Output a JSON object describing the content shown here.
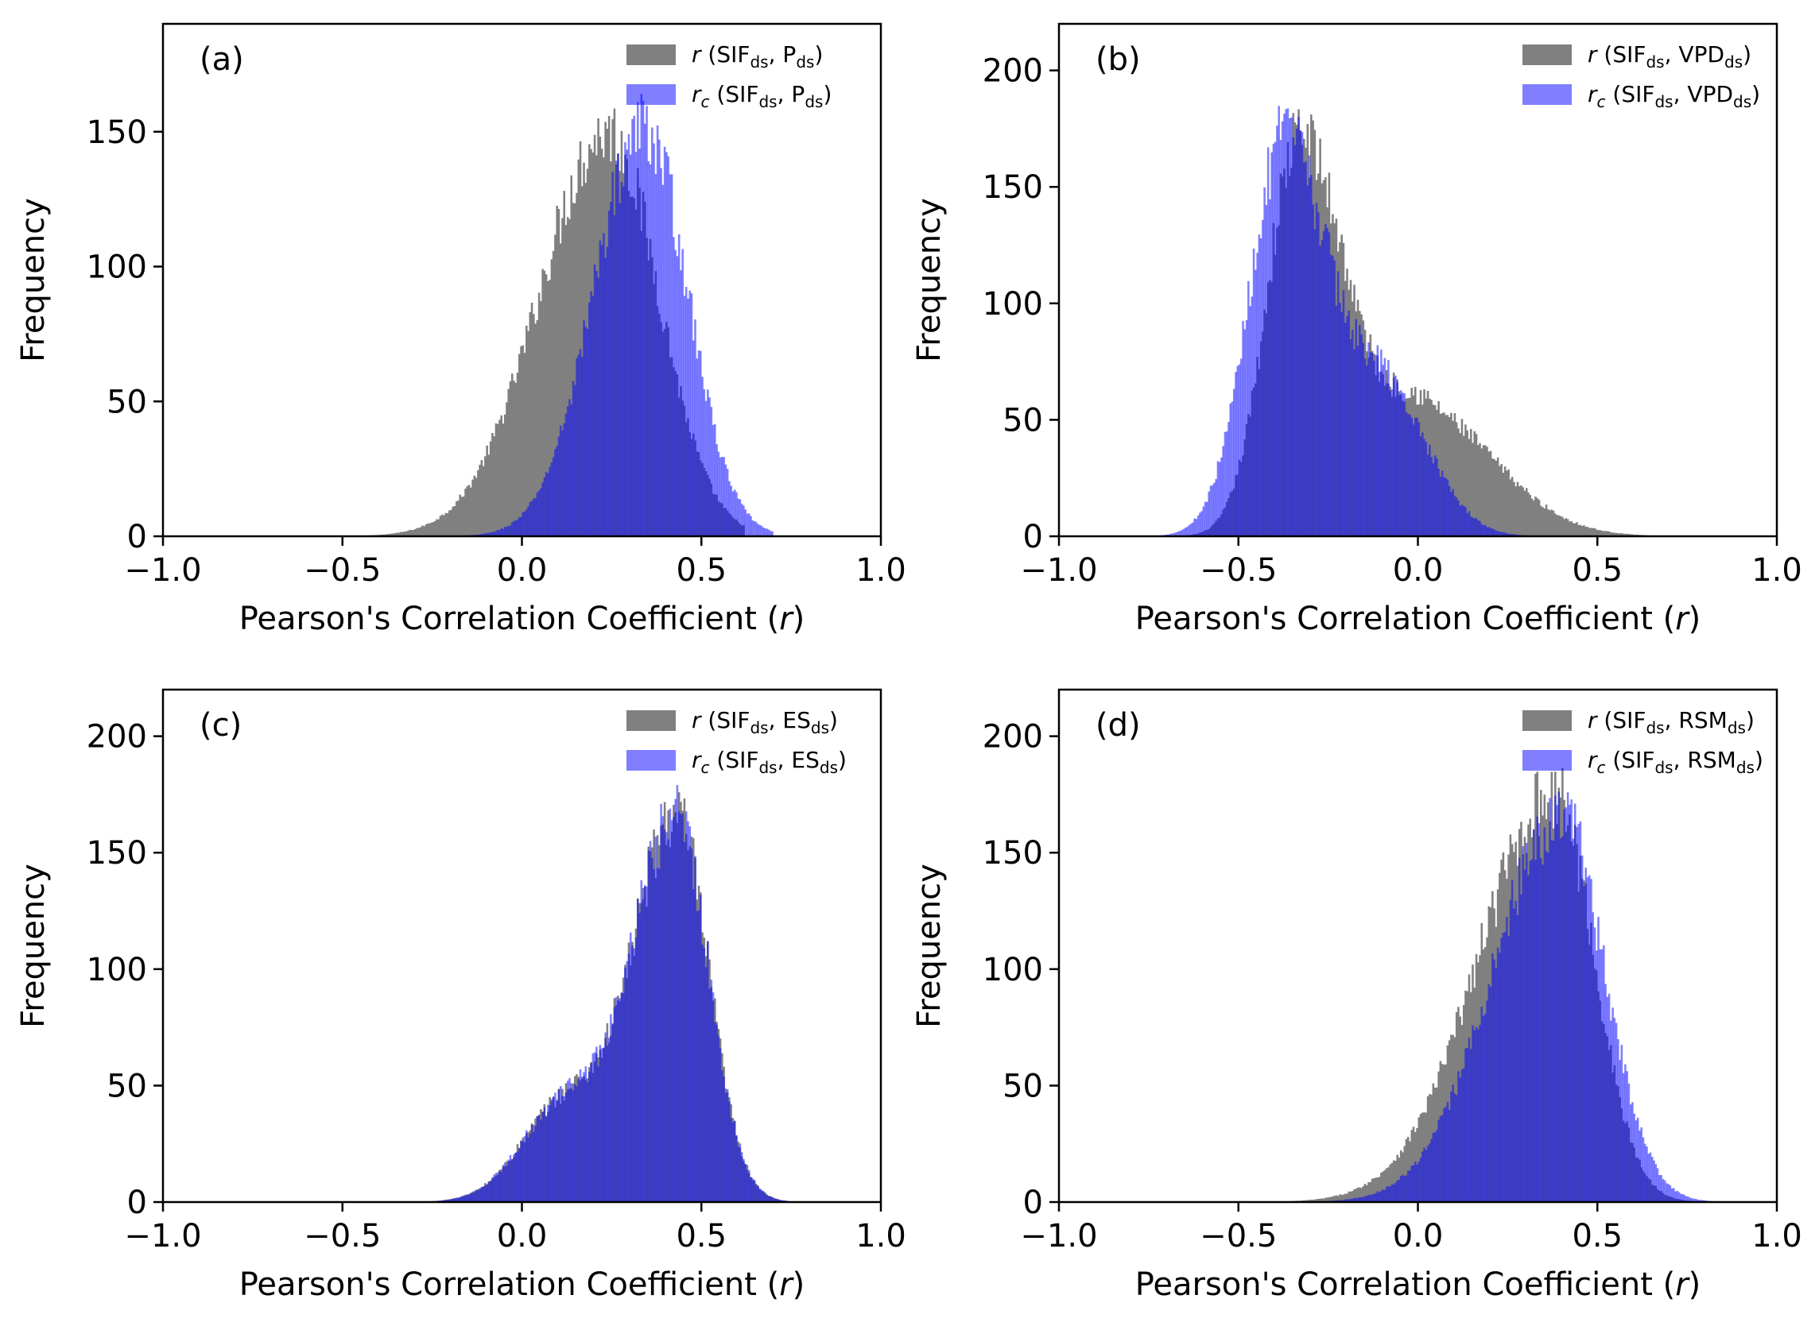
{
  "figure": {
    "panel_count": 4
  },
  "chart_data": [
    {
      "type": "histogram",
      "panel_label": "(a)",
      "xlabel": "Pearson's Correlation Coefficient (r)",
      "xlabel_main": "Pearson's Correlation Coefficient (",
      "xlabel_var": "r",
      "xlabel_close": ")",
      "ylabel": "Frequency",
      "xlim": [
        -1.0,
        1.0
      ],
      "ylim": [
        0,
        190
      ],
      "xticks": [
        -1.0,
        -0.5,
        0.0,
        0.5,
        1.0
      ],
      "xtick_labels": [
        "−1.0",
        "−0.5",
        "0.0",
        "0.5",
        "1.0"
      ],
      "yticks": [
        0,
        50,
        100,
        150
      ],
      "ytick_labels": [
        "0",
        "50",
        "100",
        "150"
      ],
      "legend_position": "top-right",
      "series": [
        {
          "name": "r (SIF_ds, P_ds)",
          "legend": {
            "sym": "r",
            "sym_sub": "",
            "v1": "SIF",
            "v2": "P"
          },
          "color": "#808080",
          "opacity": 1.0,
          "peaks": [
            {
              "center": 0.24,
              "height": 150,
              "sigma_left": 0.19,
              "sigma_right": 0.14
            }
          ],
          "support": [
            -0.55,
            0.62
          ]
        },
        {
          "name": "r_c (SIF_ds, P_ds)",
          "legend": {
            "sym": "r",
            "sym_sub": "c",
            "v1": "SIF",
            "v2": "P"
          },
          "color": "#0000ff",
          "opacity": 0.5,
          "peaks": [
            {
              "center": 0.34,
              "height": 152,
              "sigma_left": 0.14,
              "sigma_right": 0.12
            }
          ],
          "support": [
            -0.25,
            0.7
          ]
        }
      ]
    },
    {
      "type": "histogram",
      "panel_label": "(b)",
      "xlabel": "Pearson's Correlation Coefficient (r)",
      "xlabel_main": "Pearson's Correlation Coefficient (",
      "xlabel_var": "r",
      "xlabel_close": ")",
      "ylabel": "Frequency",
      "xlim": [
        -1.0,
        1.0
      ],
      "ylim": [
        0,
        220
      ],
      "xticks": [
        -1.0,
        -0.5,
        0.0,
        0.5,
        1.0
      ],
      "xtick_labels": [
        "−1.0",
        "−0.5",
        "0.0",
        "0.5",
        "1.0"
      ],
      "yticks": [
        0,
        50,
        100,
        150,
        200
      ],
      "ytick_labels": [
        "0",
        "50",
        "100",
        "150",
        "200"
      ],
      "legend_position": "top-right",
      "series": [
        {
          "name": "r (SIF_ds, VPD_ds)",
          "legend": {
            "sym": "r",
            "sym_sub": "",
            "v1": "SIF",
            "v2": "VPD"
          },
          "color": "#808080",
          "opacity": 1.0,
          "peaks": [
            {
              "center": -0.33,
              "height": 172,
              "sigma_left": 0.09,
              "sigma_right": 0.14
            },
            {
              "center": 0.02,
              "height": 52,
              "sigma_left": 0.1,
              "sigma_right": 0.2
            }
          ],
          "support": [
            -0.72,
            0.7
          ]
        },
        {
          "name": "r_c (SIF_ds, VPD_ds)",
          "legend": {
            "sym": "r",
            "sym_sub": "c",
            "v1": "SIF",
            "v2": "VPD"
          },
          "color": "#0000ff",
          "opacity": 0.5,
          "peaks": [
            {
              "center": -0.37,
              "height": 172,
              "sigma_left": 0.1,
              "sigma_right": 0.13
            },
            {
              "center": -0.08,
              "height": 55,
              "sigma_left": 0.09,
              "sigma_right": 0.12
            }
          ],
          "support": [
            -0.72,
            0.35
          ]
        }
      ]
    },
    {
      "type": "histogram",
      "panel_label": "(c)",
      "xlabel": "Pearson's Correlation Coefficient (r)",
      "xlabel_main": "Pearson's Correlation Coefficient (",
      "xlabel_var": "r",
      "xlabel_close": ")",
      "ylabel": "Frequency",
      "xlim": [
        -1.0,
        1.0
      ],
      "ylim": [
        0,
        220
      ],
      "xticks": [
        -1.0,
        -0.5,
        0.0,
        0.5,
        1.0
      ],
      "xtick_labels": [
        "−1.0",
        "−0.5",
        "0.0",
        "0.5",
        "1.0"
      ],
      "yticks": [
        0,
        50,
        100,
        150,
        200
      ],
      "ytick_labels": [
        "0",
        "50",
        "100",
        "150",
        "200"
      ],
      "legend_position": "top-right",
      "series": [
        {
          "name": "r (SIF_ds, ES_ds)",
          "legend": {
            "sym": "r",
            "sym_sub": "",
            "v1": "SIF",
            "v2": "ES"
          },
          "color": "#808080",
          "opacity": 1.0,
          "peaks": [
            {
              "center": 0.43,
              "height": 165,
              "sigma_left": 0.12,
              "sigma_right": 0.09
            },
            {
              "center": 0.12,
              "height": 42,
              "sigma_left": 0.12,
              "sigma_right": 0.12
            }
          ],
          "support": [
            -0.3,
            0.76
          ]
        },
        {
          "name": "r_c (SIF_ds, ES_ds)",
          "legend": {
            "sym": "r",
            "sym_sub": "c",
            "v1": "SIF",
            "v2": "ES"
          },
          "color": "#0000ff",
          "opacity": 0.5,
          "peaks": [
            {
              "center": 0.43,
              "height": 165,
              "sigma_left": 0.12,
              "sigma_right": 0.09
            },
            {
              "center": 0.12,
              "height": 42,
              "sigma_left": 0.12,
              "sigma_right": 0.12
            }
          ],
          "support": [
            -0.28,
            0.76
          ]
        }
      ]
    },
    {
      "type": "histogram",
      "panel_label": "(d)",
      "xlabel": "Pearson's Correlation Coefficient (r)",
      "xlabel_main": "Pearson's Correlation Coefficient (",
      "xlabel_var": "r",
      "xlabel_close": ")",
      "ylabel": "Frequency",
      "xlim": [
        -1.0,
        1.0
      ],
      "ylim": [
        0,
        220
      ],
      "xticks": [
        -1.0,
        -0.5,
        0.0,
        0.5,
        1.0
      ],
      "xtick_labels": [
        "−1.0",
        "−0.5",
        "0.0",
        "0.5",
        "1.0"
      ],
      "yticks": [
        0,
        50,
        100,
        150,
        200
      ],
      "ytick_labels": [
        "0",
        "50",
        "100",
        "150",
        "200"
      ],
      "legend_position": "top-right",
      "series": [
        {
          "name": "r (SIF_ds, RSM_ds)",
          "legend": {
            "sym": "r",
            "sym_sub": "",
            "v1": "SIF",
            "v2": "RSM"
          },
          "color": "#808080",
          "opacity": 1.0,
          "peaks": [
            {
              "center": 0.38,
              "height": 175,
              "sigma_left": 0.21,
              "sigma_right": 0.11
            }
          ],
          "support": [
            -0.5,
            0.78
          ]
        },
        {
          "name": "r_c (SIF_ds, RSM_ds)",
          "legend": {
            "sym": "r",
            "sym_sub": "c",
            "v1": "SIF",
            "v2": "RSM"
          },
          "color": "#0000ff",
          "opacity": 0.5,
          "peaks": [
            {
              "center": 0.4,
              "height": 165,
              "sigma_left": 0.19,
              "sigma_right": 0.12
            }
          ],
          "support": [
            -0.45,
            0.82
          ]
        }
      ]
    }
  ]
}
